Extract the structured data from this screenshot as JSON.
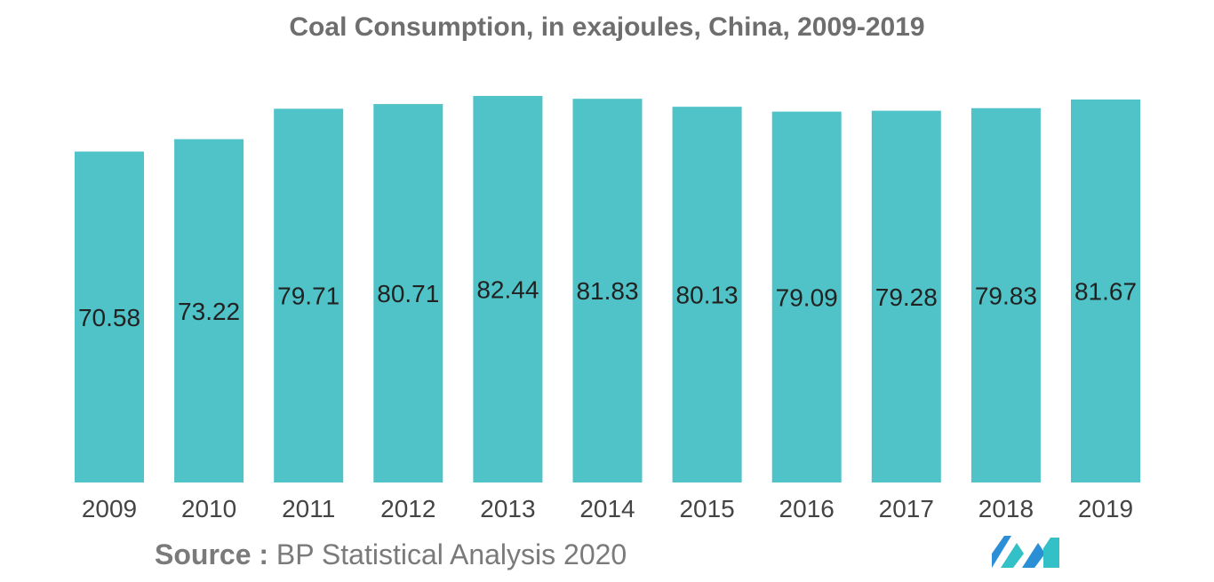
{
  "chart_data": {
    "type": "bar",
    "title": "Coal Consumption, in exajoules, China, 2009-2019",
    "categories": [
      "2009",
      "2010",
      "2011",
      "2012",
      "2013",
      "2014",
      "2015",
      "2016",
      "2017",
      "2018",
      "2019"
    ],
    "values": [
      70.58,
      73.22,
      79.71,
      80.71,
      82.44,
      81.83,
      80.13,
      79.09,
      79.28,
      79.83,
      81.67
    ],
    "value_labels": [
      "70.58",
      "73.22",
      "79.71",
      "80.71",
      "82.44",
      "81.83",
      "80.13",
      "79.09",
      "79.28",
      "79.83",
      "81.67"
    ],
    "xlabel": "",
    "ylabel": "",
    "ylim": [
      0,
      83
    ],
    "grid": false,
    "legend": "none",
    "bar_color": "#4fc3c8"
  },
  "source": {
    "label": "Source :",
    "text": " BP Statistical Analysis 2020"
  },
  "logo": {
    "icon": "mordor-intelligence-logo-icon"
  }
}
